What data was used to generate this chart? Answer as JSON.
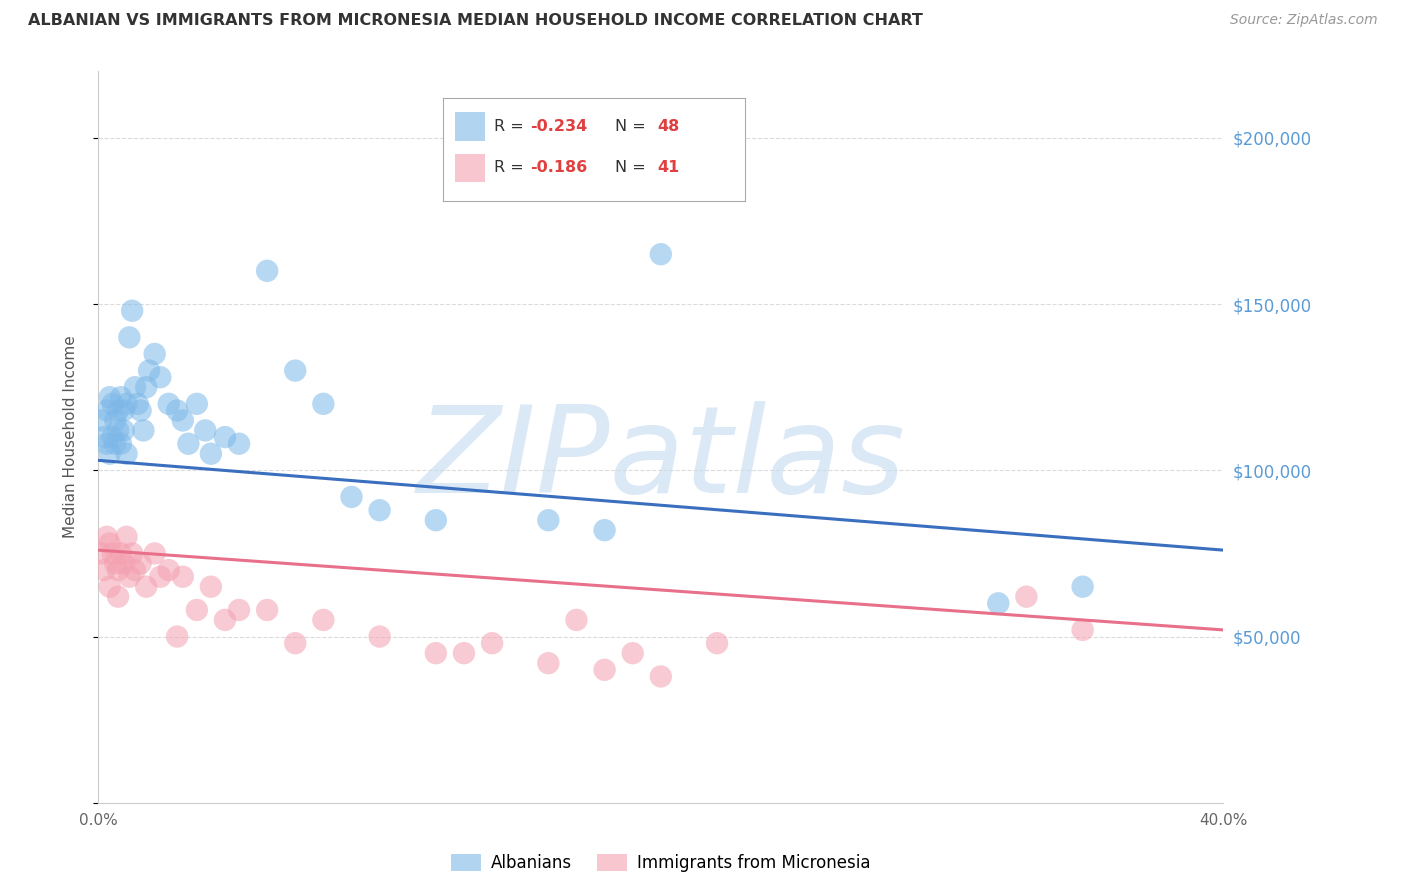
{
  "title": "ALBANIAN VS IMMIGRANTS FROM MICRONESIA MEDIAN HOUSEHOLD INCOME CORRELATION CHART",
  "source": "Source: ZipAtlas.com",
  "ylabel": "Median Household Income",
  "xlim": [
    0.0,
    0.4
  ],
  "ylim": [
    0,
    220000
  ],
  "yticks": [
    0,
    50000,
    100000,
    150000,
    200000
  ],
  "xticks": [
    0.0,
    0.1,
    0.2,
    0.3,
    0.4
  ],
  "xtick_labels": [
    "0.0%",
    "",
    "",
    "",
    "40.0%"
  ],
  "right_ytick_labels": [
    "$50,000",
    "$100,000",
    "$150,000",
    "$200,000"
  ],
  "right_ytick_values": [
    50000,
    100000,
    150000,
    200000
  ],
  "blue_color": "#7db8e8",
  "pink_color": "#f4a0b0",
  "blue_line_color": "#3a6fbf",
  "pink_line_color": "#e8708a",
  "watermark": "ZIPatlas",
  "watermark_color": "#c8ddf0",
  "background_color": "#ffffff",
  "grid_color": "#cccccc",
  "blue_x": [
    0.001,
    0.002,
    0.003,
    0.003,
    0.004,
    0.004,
    0.005,
    0.005,
    0.006,
    0.006,
    0.007,
    0.007,
    0.008,
    0.008,
    0.009,
    0.009,
    0.01,
    0.01,
    0.011,
    0.012,
    0.013,
    0.014,
    0.015,
    0.016,
    0.017,
    0.018,
    0.02,
    0.022,
    0.025,
    0.028,
    0.03,
    0.032,
    0.035,
    0.038,
    0.04,
    0.045,
    0.05,
    0.06,
    0.07,
    0.08,
    0.09,
    0.1,
    0.12,
    0.16,
    0.18,
    0.2,
    0.32,
    0.35
  ],
  "blue_y": [
    115000,
    110000,
    118000,
    108000,
    122000,
    105000,
    120000,
    110000,
    115000,
    108000,
    118000,
    112000,
    122000,
    108000,
    118000,
    112000,
    120000,
    105000,
    140000,
    148000,
    125000,
    120000,
    118000,
    112000,
    125000,
    130000,
    135000,
    128000,
    120000,
    118000,
    115000,
    108000,
    120000,
    112000,
    105000,
    110000,
    108000,
    160000,
    130000,
    120000,
    92000,
    88000,
    85000,
    85000,
    82000,
    165000,
    60000,
    65000
  ],
  "pink_x": [
    0.001,
    0.002,
    0.003,
    0.004,
    0.004,
    0.005,
    0.006,
    0.007,
    0.007,
    0.008,
    0.009,
    0.01,
    0.011,
    0.012,
    0.013,
    0.015,
    0.017,
    0.02,
    0.022,
    0.025,
    0.028,
    0.03,
    0.035,
    0.04,
    0.045,
    0.05,
    0.06,
    0.07,
    0.08,
    0.1,
    0.12,
    0.13,
    0.14,
    0.16,
    0.17,
    0.18,
    0.19,
    0.2,
    0.22,
    0.33,
    0.35
  ],
  "pink_y": [
    75000,
    70000,
    80000,
    65000,
    78000,
    75000,
    72000,
    70000,
    62000,
    75000,
    72000,
    80000,
    68000,
    75000,
    70000,
    72000,
    65000,
    75000,
    68000,
    70000,
    50000,
    68000,
    58000,
    65000,
    55000,
    58000,
    58000,
    48000,
    55000,
    50000,
    45000,
    45000,
    48000,
    42000,
    55000,
    40000,
    45000,
    38000,
    48000,
    62000,
    52000
  ]
}
